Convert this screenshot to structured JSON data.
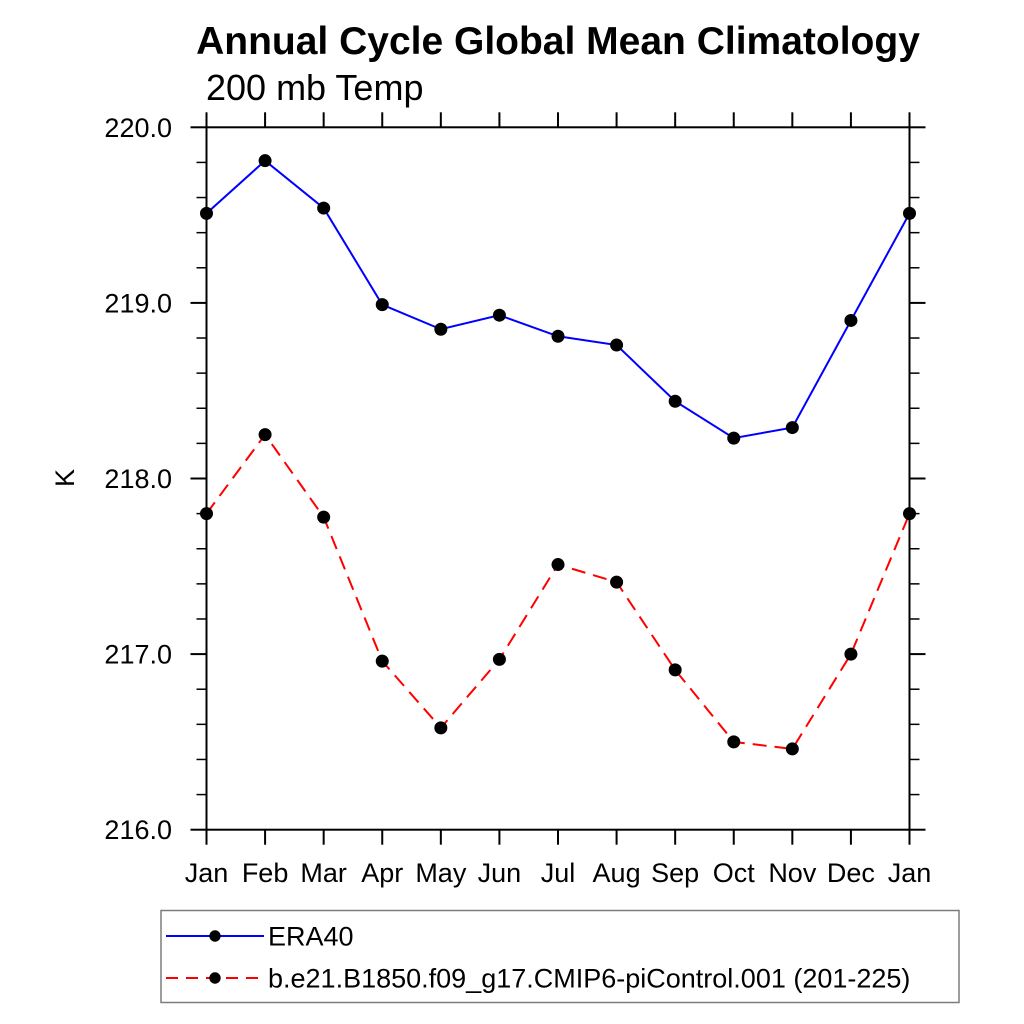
{
  "figure": {
    "background": "#ffffff",
    "frame_color": "#000000"
  },
  "chart_data": {
    "type": "line",
    "title": "Annual Cycle Global Mean Climatology",
    "subtitle": "200 mb Temp",
    "ylabel": "K",
    "xlabel": "",
    "categories": [
      "Jan",
      "Feb",
      "Mar",
      "Apr",
      "May",
      "Jun",
      "Jul",
      "Aug",
      "Sep",
      "Oct",
      "Nov",
      "Dec",
      "Jan"
    ],
    "ylim": [
      216.0,
      220.0
    ],
    "ytick_values": [
      220.0,
      219.0,
      218.0,
      217.0,
      216.0
    ],
    "ytick_labels": [
      "220.0",
      "219.0",
      "218.0",
      "217.0",
      "216.0"
    ],
    "minor_tick_step": 0.2,
    "grid": false,
    "marker_shape": "circle",
    "marker_color": "#000000",
    "legend_position": "bottom-left-box",
    "series": [
      {
        "name": "ERA40",
        "color": "#0000ff",
        "line_style": "solid",
        "values": [
          219.51,
          219.81,
          219.54,
          218.99,
          218.85,
          218.93,
          218.81,
          218.76,
          218.44,
          218.23,
          218.29,
          218.9,
          219.51
        ]
      },
      {
        "name": "b.e21.B1850.f09_g17.CMIP6-piControl.001 (201-225)",
        "color": "#ff0000",
        "line_style": "dashed",
        "values": [
          217.8,
          218.25,
          217.78,
          216.96,
          216.58,
          216.97,
          217.51,
          217.41,
          216.91,
          216.5,
          216.46,
          217.0,
          217.8
        ]
      }
    ]
  }
}
